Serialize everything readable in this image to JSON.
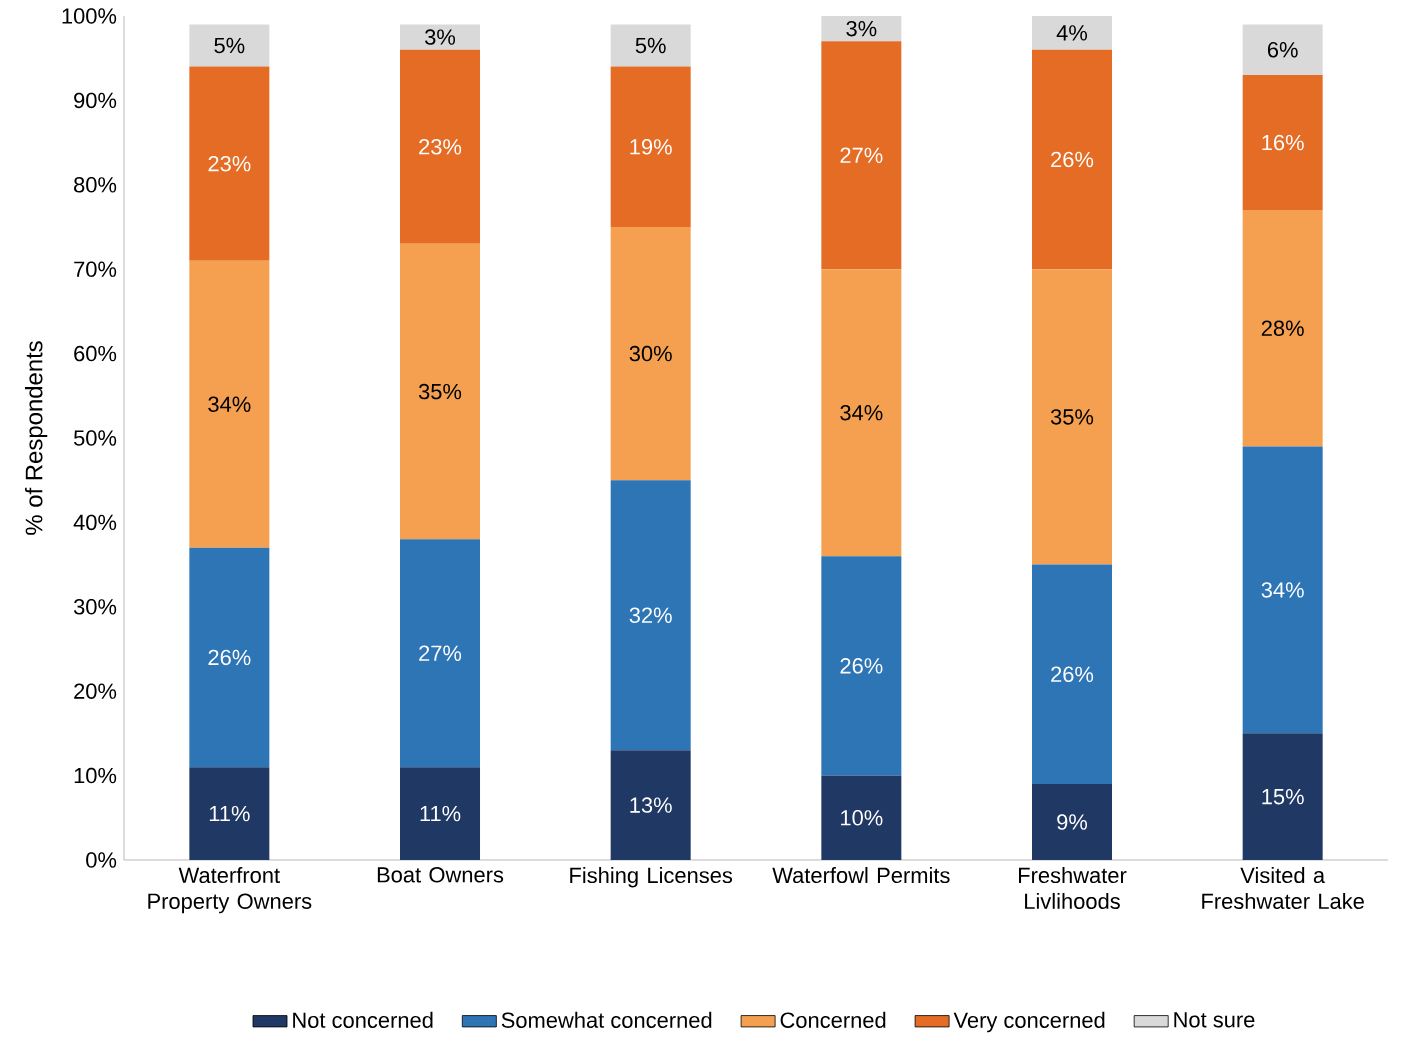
{
  "chart_data": {
    "type": "bar",
    "stacked": true,
    "ylabel": "% of Respondents",
    "categories": [
      "Waterfront Property Owners",
      "Boat Owners",
      "Fishing Licenses",
      "Waterfowl Permits",
      "Freshwater Livlihoods",
      "Visited a Freshwater Lake"
    ],
    "series": [
      {
        "name": "Not concerned",
        "color": "#203864",
        "values": [
          11,
          11,
          13,
          10,
          9,
          15
        ],
        "value_labels": [
          "11%",
          "11%",
          "13%",
          "10%",
          "9%",
          "15%"
        ]
      },
      {
        "name": "Somewhat concerned",
        "color": "#2e75b6",
        "values": [
          26,
          27,
          32,
          26,
          26,
          34
        ],
        "value_labels": [
          "26%",
          "27%",
          "32%",
          "26%",
          "26%",
          "34%"
        ]
      },
      {
        "name": "Concerned",
        "color": "#f4a050",
        "values": [
          34,
          35,
          30,
          34,
          35,
          28
        ],
        "value_labels": [
          "34%",
          "35%",
          "30%",
          "34%",
          "35%",
          "28%"
        ]
      },
      {
        "name": "Very concerned",
        "color": "#e46c25",
        "values": [
          23,
          23,
          19,
          27,
          26,
          16
        ],
        "value_labels": [
          "23%",
          "23%",
          "19%",
          "27%",
          "26%",
          "16%"
        ]
      },
      {
        "name": "Not sure",
        "color": "#d9d9d9",
        "values": [
          5,
          3,
          5,
          3,
          4,
          6
        ],
        "value_labels": [
          "5%",
          "3%",
          "5%",
          "3%",
          "4%",
          "6%"
        ]
      }
    ],
    "ylim": [
      0,
      100
    ],
    "yticks": [
      {
        "value": 0,
        "label": "0%"
      },
      {
        "value": 10,
        "label": "10%"
      },
      {
        "value": 20,
        "label": "20%"
      },
      {
        "value": 30,
        "label": "30%"
      },
      {
        "value": 40,
        "label": "40%"
      },
      {
        "value": 50,
        "label": "50%"
      },
      {
        "value": 60,
        "label": "60%"
      },
      {
        "value": 70,
        "label": "70%"
      },
      {
        "value": 80,
        "label": "80%"
      },
      {
        "value": 90,
        "label": "90%"
      },
      {
        "value": 100,
        "label": "100%"
      }
    ],
    "grid": false,
    "legend": "bottom"
  }
}
